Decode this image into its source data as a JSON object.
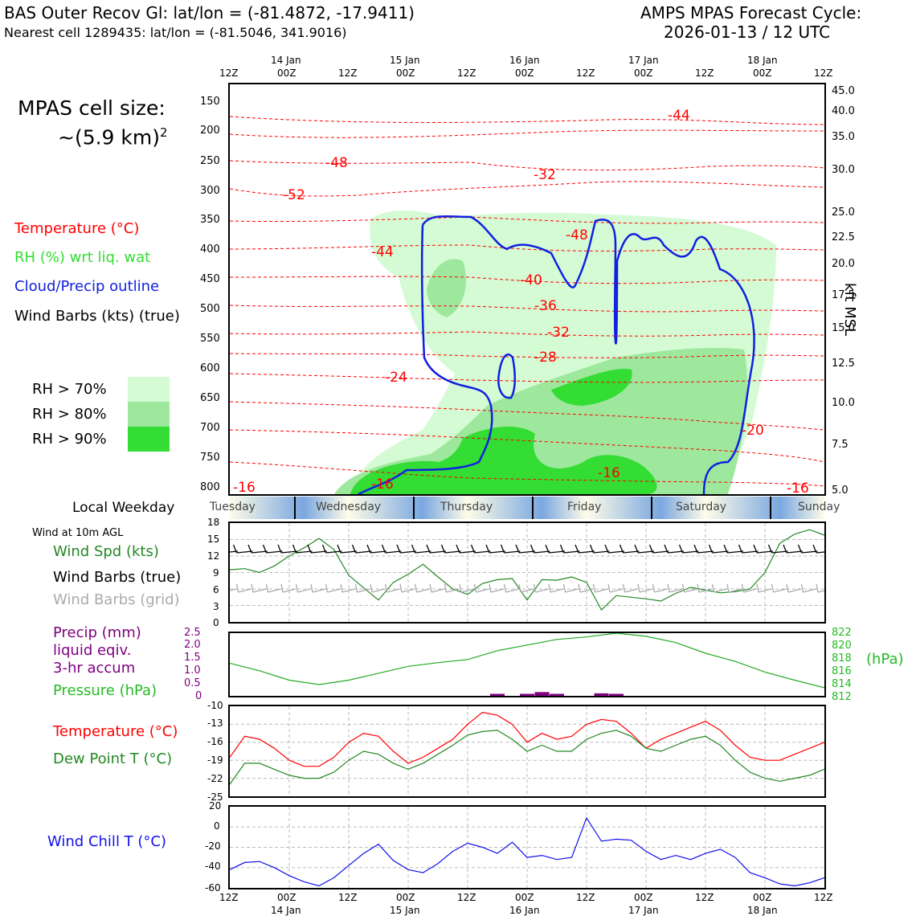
{
  "header": {
    "location": "BAS Outer Recov Gl: lat/lon = (-81.4872, -17.9411)",
    "nearest": "Nearest cell 1289435: lat/lon = (-81.5046, 341.9016)",
    "cycle_title": "AMPS MPAS Forecast Cycle:",
    "cycle_date": "2026-01-13 / 12 UTC"
  },
  "cell_size": {
    "line1": "MPAS cell size:",
    "line2": "~(5.9 km)",
    "sup": "2"
  },
  "legend_top": {
    "temperature": "Temperature (°C)",
    "rh": "RH (%) wrt liq. wat",
    "cloud": "Cloud/Precip outline",
    "wind": "Wind Barbs (kts) (true)",
    "rh70": "RH > 70%",
    "rh80": "RH > 80%",
    "rh90": "RH > 90%"
  },
  "colors": {
    "rh70": "#d4fbd4",
    "rh80": "#9ee89e",
    "rh90": "#33dd33",
    "temp": "#ff0000",
    "cloud": "#1020e0",
    "pressure": "#22aa22",
    "dew": "#228822",
    "precip": "#800080",
    "chill": "#1010ee"
  },
  "time_axis": {
    "top_hours": [
      "12Z",
      "00Z",
      "12Z",
      "00Z",
      "12Z",
      "00Z",
      "12Z",
      "00Z",
      "12Z",
      "00Z",
      "12Z"
    ],
    "dates": [
      "14 Jan",
      "15 Jan",
      "16 Jan",
      "17 Jan",
      "18 Jan"
    ]
  },
  "weekdays": {
    "label": "Local Weekday",
    "days": [
      "Tuesday",
      "Wednesday",
      "Thursday",
      "Friday",
      "Saturday",
      "Sunday"
    ]
  },
  "pressure_axis": [
    "150",
    "200",
    "250",
    "300",
    "350",
    "400",
    "450",
    "500",
    "550",
    "600",
    "650",
    "700",
    "750",
    "800"
  ],
  "kft_axis": [
    "45.0",
    "40.0",
    "35.0",
    "30.0",
    "25.0",
    "22.5",
    "20.0",
    "17.5",
    "15.0",
    "12.5",
    "10.0",
    "7.5",
    "5.0"
  ],
  "kft_label": "kft MSL",
  "temp_labels": [
    "-44",
    "-48",
    "-52",
    "-32",
    "-48",
    "-44",
    "-40",
    "-36",
    "-32",
    "-28",
    "-24",
    "-20",
    "-16",
    "-16",
    "-16",
    "-16"
  ],
  "wind_panel": {
    "title": "Wind at 10m AGL",
    "spd": "Wind Spd (kts)",
    "true": "Wind Barbs (true)",
    "grid": "Wind Barbs (grid)",
    "yticks": [
      "18",
      "15",
      "12",
      "9",
      "6",
      "3",
      "0"
    ]
  },
  "precip_panel": {
    "precip1": "Precip (mm)",
    "precip2": "liquid eqiv.",
    "precip3": "3-hr accum",
    "pressure": "Pressure (hPa)",
    "yleft": [
      "2.5",
      "2.0",
      "1.5",
      "1.0",
      "0.5",
      "0"
    ],
    "yright": [
      "822",
      "820",
      "818",
      "816",
      "814",
      "812"
    ],
    "unit": "(hPa)"
  },
  "temp_panel": {
    "temp": "Temperature (°C)",
    "dew": "Dew Point T (°C)",
    "yticks": [
      "-10",
      "-13",
      "-16",
      "-19",
      "-22",
      "-25"
    ]
  },
  "chill_panel": {
    "label": "Wind Chill T (°C)",
    "yticks": [
      "20",
      "0",
      "-20",
      "-40",
      "-60"
    ]
  },
  "chart_data": [
    {
      "type": "line",
      "title": "Wind at 10m AGL",
      "ylabel": "Wind Spd (kts)",
      "ylim": [
        0,
        18
      ],
      "x": [
        0,
        3,
        6,
        9,
        12,
        15,
        18,
        21,
        24,
        27,
        30,
        33,
        36,
        39,
        42,
        45,
        48,
        51,
        54,
        57,
        60,
        63,
        66,
        69,
        72,
        75,
        78,
        81,
        84,
        87,
        90,
        93,
        96,
        99,
        102,
        105,
        108,
        111,
        114,
        117,
        120
      ],
      "series": [
        {
          "name": "Wind Spd (kts)",
          "values": [
            9.5,
            9.7,
            9.0,
            10.2,
            12,
            13.5,
            15.2,
            13.2,
            8.5,
            6.2,
            4.0,
            7.2,
            8.7,
            10.5,
            8.2,
            6.0,
            5.0,
            7.0,
            7.7,
            7.9,
            4.0,
            7.7,
            7.6,
            8.2,
            7.2,
            2.2,
            4.8,
            4.5,
            4.2,
            3.8,
            5.2,
            6.3,
            5.8,
            5.3,
            5.5,
            6.0,
            9.0,
            14.3,
            16.0,
            16.8,
            15.8
          ]
        }
      ]
    },
    {
      "type": "bar",
      "title": "Precip 3-hr accum",
      "ylabel": "Precip (mm)",
      "ylim": [
        0,
        2.5
      ],
      "x": [
        54,
        60,
        63,
        66,
        75,
        78
      ],
      "values": [
        0.08,
        0.08,
        0.15,
        0.08,
        0.1,
        0.08
      ]
    },
    {
      "type": "line",
      "title": "Pressure",
      "ylabel": "Pressure (hPa)",
      "ylim": [
        812,
        822
      ],
      "x": [
        0,
        6,
        12,
        18,
        24,
        30,
        36,
        42,
        48,
        54,
        60,
        66,
        72,
        78,
        84,
        90,
        96,
        102,
        108,
        114,
        120
      ],
      "series": [
        {
          "name": "Pressure (hPa)",
          "values": [
            817.2,
            816.0,
            814.5,
            813.8,
            814.5,
            815.6,
            816.7,
            817.3,
            817.8,
            819.2,
            820.1,
            821.0,
            821.4,
            822.0,
            821.5,
            820.5,
            818.8,
            817.5,
            815.8,
            814.5,
            813.3
          ]
        }
      ]
    },
    {
      "type": "line",
      "title": "Temperature and Dew Point",
      "ylabel": "°C",
      "ylim": [
        -25,
        -10
      ],
      "x": [
        0,
        3,
        6,
        9,
        12,
        15,
        18,
        21,
        24,
        27,
        30,
        33,
        36,
        39,
        42,
        45,
        48,
        51,
        54,
        57,
        60,
        63,
        66,
        69,
        72,
        75,
        78,
        81,
        84,
        87,
        90,
        93,
        96,
        99,
        102,
        105,
        108,
        111,
        114,
        117,
        120
      ],
      "series": [
        {
          "name": "Temperature (°C)",
          "values": [
            -18.5,
            -15,
            -15.5,
            -17,
            -19,
            -20,
            -20,
            -18.5,
            -16,
            -14.5,
            -15,
            -17.5,
            -19.5,
            -18.5,
            -17,
            -15.5,
            -13,
            -11,
            -11.5,
            -13,
            -16,
            -14.5,
            -15.5,
            -15,
            -13,
            -12.2,
            -12.5,
            -14.5,
            -17,
            -15.5,
            -14.5,
            -13.5,
            -12.5,
            -14,
            -16.5,
            -18.5,
            -19,
            -19,
            -18,
            -17,
            -16
          ]
        },
        {
          "name": "Dew Point T (°C)",
          "values": [
            -23,
            -19.5,
            -19.5,
            -20.5,
            -21.5,
            -22,
            -22,
            -21,
            -19,
            -17.5,
            -18,
            -19.5,
            -20.5,
            -19.5,
            -18,
            -16.5,
            -14.8,
            -14.2,
            -14,
            -15.5,
            -17.5,
            -16.5,
            -17.5,
            -17.5,
            -15.5,
            -14.5,
            -14,
            -15,
            -17,
            -17.5,
            -16.5,
            -15.5,
            -15,
            -16.5,
            -19,
            -21,
            -22,
            -22.5,
            -22,
            -21.5,
            -20.5
          ]
        }
      ]
    },
    {
      "type": "line",
      "title": "Wind Chill",
      "ylabel": "Wind Chill T (°C)",
      "ylim": [
        -60,
        20
      ],
      "x": [
        0,
        3,
        6,
        9,
        12,
        15,
        18,
        21,
        24,
        27,
        30,
        33,
        36,
        39,
        42,
        45,
        48,
        51,
        54,
        57,
        60,
        63,
        66,
        69,
        72,
        75,
        78,
        81,
        84,
        87,
        90,
        93,
        96,
        99,
        102,
        105,
        108,
        111,
        114,
        117,
        120
      ],
      "series": [
        {
          "name": "Wind Chill T (°C)",
          "values": [
            -42,
            -35,
            -34,
            -40,
            -48,
            -54,
            -58,
            -50,
            -38,
            -26,
            -17,
            -33,
            -42,
            -45,
            -36,
            -24,
            -16,
            -20,
            -26,
            -15,
            -30,
            -28,
            -32,
            -30,
            9,
            -14,
            -12,
            -13,
            -24,
            -32,
            -28,
            -32,
            -26,
            -22,
            -30,
            -45,
            -50,
            -56,
            -58,
            -55,
            -50
          ]
        }
      ]
    }
  ]
}
